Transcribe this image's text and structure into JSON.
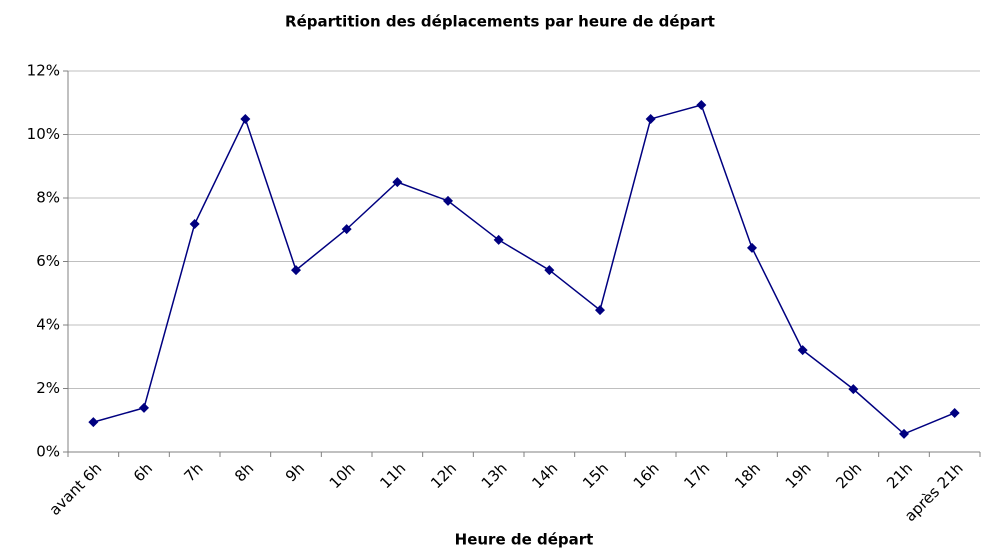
{
  "chart_data": {
    "type": "line",
    "title": "Répartition des déplacements par heure de départ",
    "x_label": "Heure de départ",
    "categories": [
      "avant 6h",
      "6h",
      "7h",
      "8h",
      "9h",
      "10h",
      "11h",
      "12h",
      "13h",
      "14h",
      "15h",
      "16h",
      "17h",
      "18h",
      "19h",
      "20h",
      "21h",
      "après 21h"
    ],
    "series": [
      {
        "name": "Déplacements",
        "color": "#000080",
        "values": [
          0.94,
          1.39,
          7.18,
          10.49,
          5.73,
          7.02,
          8.5,
          7.91,
          6.68,
          5.73,
          4.47,
          10.49,
          10.93,
          6.43,
          3.21,
          1.98,
          0.57,
          1.23
        ]
      }
    ],
    "ylim": [
      0,
      12
    ],
    "yticks": [
      {
        "value": 0,
        "label": "0%"
      },
      {
        "value": 2,
        "label": "2%"
      },
      {
        "value": 4,
        "label": "4%"
      },
      {
        "value": 6,
        "label": "6%"
      },
      {
        "value": 8,
        "label": "8%"
      },
      {
        "value": 10,
        "label": "10%"
      },
      {
        "value": 12,
        "label": "12%"
      }
    ],
    "grid": true
  }
}
